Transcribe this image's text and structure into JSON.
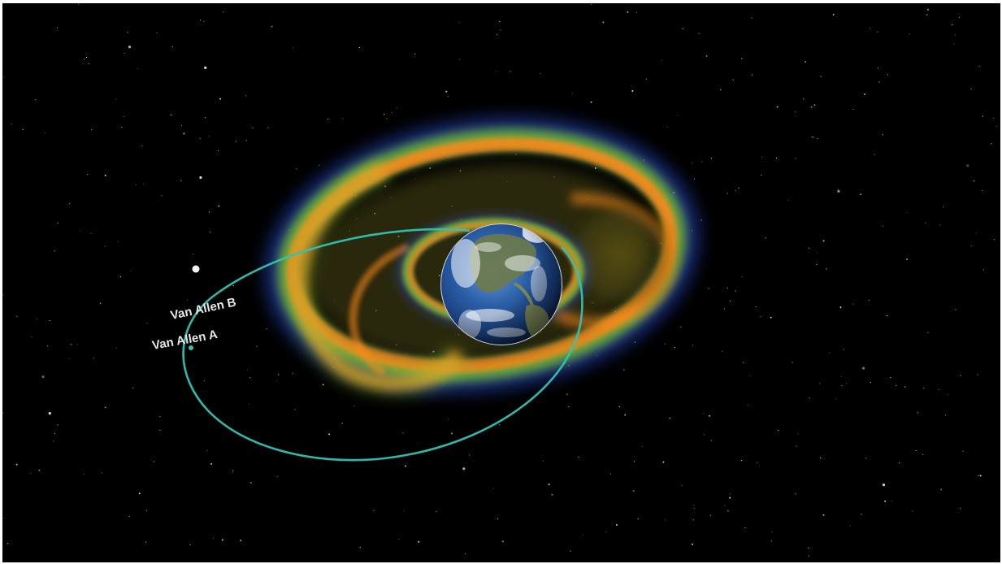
{
  "scene": {
    "labels": {
      "probe_b": "Van Allen B",
      "probe_a": "Van Allen A"
    },
    "colors": {
      "space": "#000000",
      "orbit": "#2fc3b2",
      "belt_outer": "#ff8a1c",
      "belt_edge": "#2a5cff",
      "belt_green": "#8ad23a",
      "ocean": "#1d4f9a",
      "cloud": "#ffffff"
    },
    "icons": [
      "earth-icon",
      "star-icon",
      "probe-icon"
    ]
  }
}
